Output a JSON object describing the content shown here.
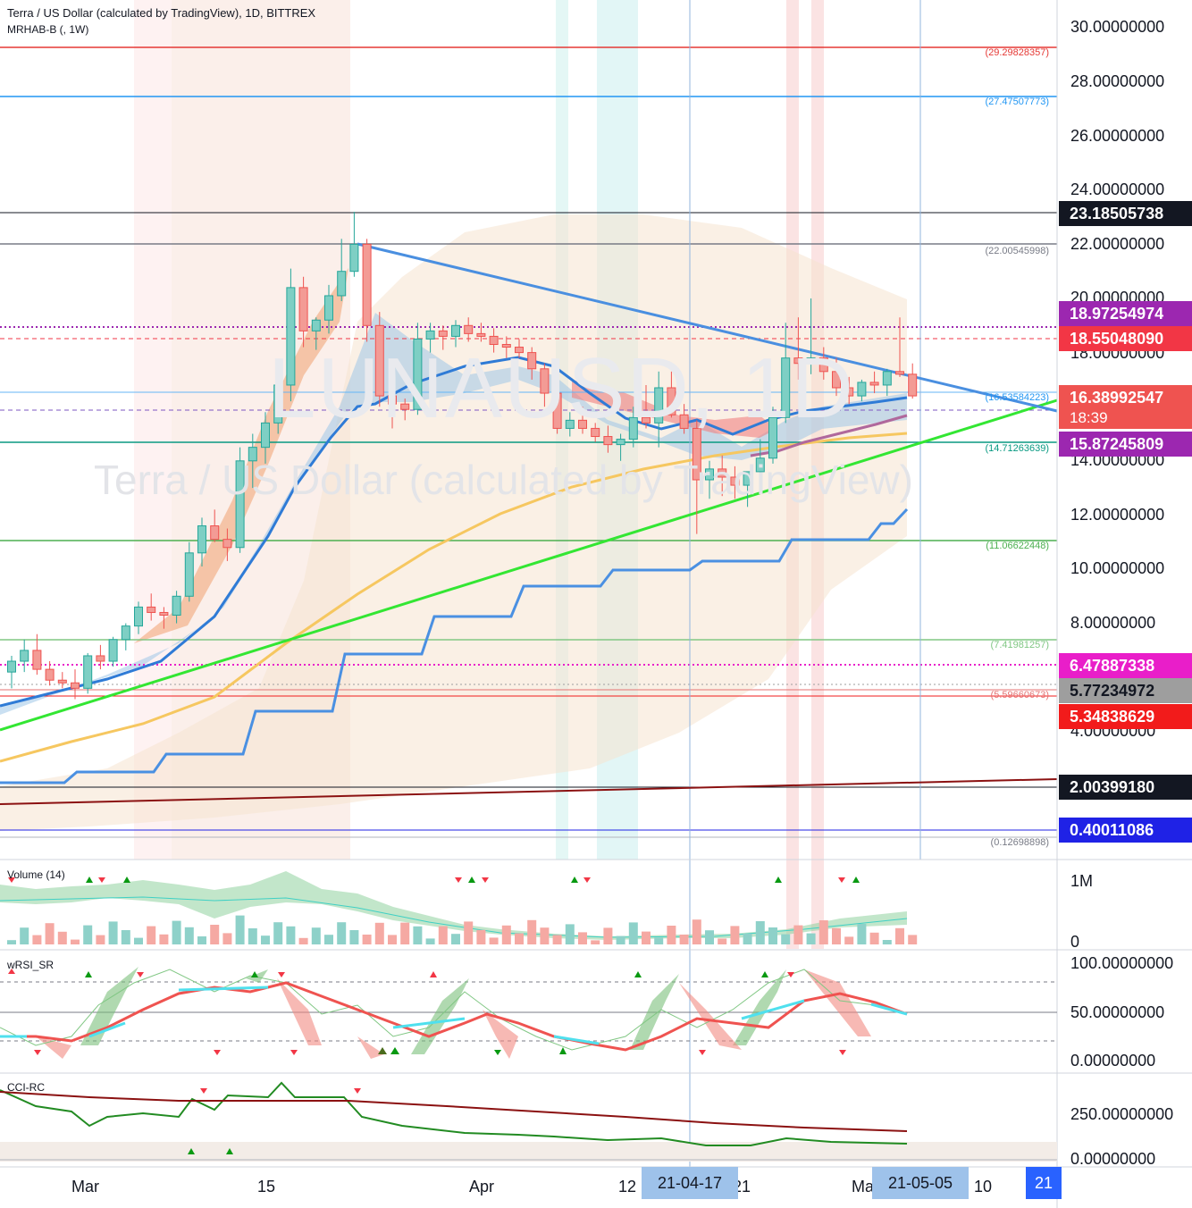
{
  "header": {
    "title": "Terra / US Dollar (calculated by TradingView), 1D, BITTREX",
    "indicator": "MRHAB-B (, 1W)"
  },
  "watermark": {
    "symbol": "LUNAUSD, 1D",
    "name": "Terra / US Dollar (calculated by TradingView)"
  },
  "price_axis": {
    "ticks": [
      "30.00000000",
      "28.00000000",
      "26.00000000",
      "24.00000000",
      "22.00000000",
      "20.00000000",
      "18.00000000",
      "14.00000000",
      "12.00000000",
      "10.00000000",
      "8.00000000",
      "4.00000000"
    ]
  },
  "price_labels": [
    {
      "text": "23.18505738",
      "bg": "#131722"
    },
    {
      "text": "18.97254974",
      "bg": "#9c27b0"
    },
    {
      "text": "18.55048090",
      "bg": "#f23645"
    },
    {
      "text": "16.38992547",
      "bg": "#ef5350"
    },
    {
      "text": "18:39",
      "bg": "#ef5350"
    },
    {
      "text": "15.87245809",
      "bg": "#9c27b0"
    },
    {
      "text": "6.47887338",
      "bg": "#e91ec9"
    },
    {
      "text": "5.77234972",
      "bg": "#9e9e9e"
    },
    {
      "text": "5.34838629",
      "bg": "#f21b1b"
    },
    {
      "text": "2.00399180",
      "bg": "#131722"
    },
    {
      "text": "0.40011086",
      "bg": "#1f22e6"
    }
  ],
  "level_labels": [
    "(29.29828357)",
    "(27.47507773)",
    "(22.00545998)",
    "(16.53584223)",
    "(14.71263639)",
    "(11.06622448)",
    "(7.41981257)",
    "(5.59660673)",
    "(0.12698898)"
  ],
  "panes": {
    "volume": {
      "label": "Volume (14)",
      "ticks": [
        "1M",
        "0"
      ]
    },
    "wrsi": {
      "label": "wRSI_SR",
      "ticks": [
        "100.00000000",
        "50.00000000",
        "0.00000000"
      ]
    },
    "cci": {
      "label": "CCI-RC",
      "ticks": [
        "250.00000000",
        "0.00000000"
      ]
    }
  },
  "time_axis": {
    "labels": [
      "Mar",
      "15",
      "Apr",
      "12",
      "21",
      "Ma",
      "10",
      "21"
    ],
    "badges": [
      "21-04-17",
      "21-05-05"
    ]
  },
  "chart_data": {
    "type": "candlestick",
    "title": "Terra / US Dollar (calculated by TradingView), 1D, BITTREX",
    "ylim": [
      0,
      31
    ],
    "ohlc": [
      [
        6.2,
        6.8,
        5.6,
        6.6
      ],
      [
        6.6,
        7.4,
        6.2,
        7.0
      ],
      [
        7.0,
        7.6,
        6.1,
        6.3
      ],
      [
        6.3,
        6.6,
        5.7,
        5.9
      ],
      [
        5.9,
        6.2,
        5.6,
        5.8
      ],
      [
        5.8,
        6.3,
        5.2,
        5.6
      ],
      [
        5.6,
        6.9,
        5.4,
        6.8
      ],
      [
        6.8,
        7.2,
        6.3,
        6.6
      ],
      [
        6.6,
        7.5,
        6.4,
        7.4
      ],
      [
        7.4,
        8.0,
        7.0,
        7.9
      ],
      [
        7.9,
        8.8,
        7.6,
        8.6
      ],
      [
        8.6,
        9.1,
        8.1,
        8.4
      ],
      [
        8.4,
        8.6,
        7.8,
        8.3
      ],
      [
        8.3,
        9.2,
        8.0,
        9.0
      ],
      [
        9.0,
        11.0,
        8.8,
        10.6
      ],
      [
        10.6,
        11.9,
        10.1,
        11.6
      ],
      [
        11.6,
        12.2,
        11.0,
        11.1
      ],
      [
        11.1,
        11.5,
        10.3,
        10.8
      ],
      [
        10.8,
        14.5,
        10.6,
        14.0
      ],
      [
        14.0,
        15.0,
        13.0,
        14.5
      ],
      [
        14.5,
        15.8,
        13.9,
        15.4
      ],
      [
        15.4,
        17.0,
        15.0,
        16.8
      ],
      [
        16.8,
        21.1,
        16.2,
        20.4
      ],
      [
        20.4,
        20.8,
        18.2,
        18.8
      ],
      [
        18.8,
        19.3,
        18.1,
        19.2
      ],
      [
        19.2,
        20.5,
        18.7,
        20.1
      ],
      [
        20.1,
        22.2,
        19.9,
        21.0
      ],
      [
        21.0,
        23.2,
        20.8,
        22.0
      ],
      [
        22.0,
        22.2,
        18.4,
        19.0
      ],
      [
        19.0,
        19.5,
        16.0,
        16.4
      ],
      [
        16.4,
        16.8,
        15.2,
        16.1
      ],
      [
        16.1,
        16.3,
        15.5,
        15.9
      ],
      [
        15.9,
        19.1,
        15.7,
        18.5
      ],
      [
        18.5,
        19.1,
        18.0,
        18.8
      ],
      [
        18.8,
        19.0,
        18.1,
        18.6
      ],
      [
        18.6,
        19.2,
        18.2,
        19.0
      ],
      [
        19.0,
        19.3,
        18.4,
        18.7
      ],
      [
        18.7,
        19.1,
        18.4,
        18.6
      ],
      [
        18.6,
        18.9,
        18.0,
        18.3
      ],
      [
        18.3,
        18.6,
        17.8,
        18.2
      ],
      [
        18.2,
        18.5,
        17.8,
        18.0
      ],
      [
        18.0,
        18.2,
        17.0,
        17.4
      ],
      [
        17.4,
        17.6,
        16.0,
        16.5
      ],
      [
        16.5,
        16.9,
        15.0,
        15.2
      ],
      [
        15.2,
        15.8,
        14.9,
        15.5
      ],
      [
        15.5,
        16.0,
        15.0,
        15.2
      ],
      [
        15.2,
        15.4,
        14.7,
        14.9
      ],
      [
        14.9,
        15.3,
        14.3,
        14.6
      ],
      [
        14.6,
        15.0,
        14.0,
        14.8
      ],
      [
        14.8,
        16.0,
        14.5,
        15.6
      ],
      [
        15.6,
        16.8,
        15.2,
        15.4
      ],
      [
        15.4,
        17.3,
        14.5,
        16.7
      ],
      [
        16.7,
        17.3,
        15.6,
        15.7
      ],
      [
        15.7,
        16.1,
        15.0,
        15.2
      ],
      [
        15.2,
        15.5,
        11.3,
        13.3
      ],
      [
        13.3,
        14.0,
        12.6,
        13.7
      ],
      [
        13.7,
        14.2,
        12.7,
        13.4
      ],
      [
        13.4,
        13.8,
        12.6,
        13.1
      ],
      [
        13.1,
        13.6,
        12.3,
        13.6
      ],
      [
        13.6,
        14.8,
        13.2,
        14.1
      ],
      [
        14.1,
        16.0,
        13.9,
        15.6
      ],
      [
        15.6,
        19.1,
        15.4,
        17.8
      ],
      [
        17.8,
        19.3,
        17.0,
        17.6
      ],
      [
        17.6,
        20.0,
        17.2,
        17.8
      ],
      [
        17.8,
        18.2,
        17.0,
        17.3
      ],
      [
        17.3,
        17.8,
        16.4,
        16.7
      ],
      [
        16.7,
        17.1,
        16.1,
        16.4
      ],
      [
        16.4,
        17.0,
        16.2,
        16.9
      ],
      [
        16.9,
        17.3,
        16.5,
        16.8
      ],
      [
        16.8,
        17.4,
        16.4,
        17.3
      ],
      [
        17.3,
        19.3,
        17.1,
        17.2
      ],
      [
        17.2,
        17.6,
        16.3,
        16.4
      ]
    ],
    "horizontal_levels": [
      29.29828357,
      27.47507773,
      23.18505738,
      22.00545998,
      18.97254974,
      18.5504809,
      16.53584223,
      15.87245809,
      14.71263639,
      11.06622448,
      7.41981257,
      6.47887338,
      5.77234972,
      5.59660673,
      5.34838629,
      2.0039918,
      0.40011086,
      0.12698898
    ],
    "grid": false,
    "legend": "none"
  }
}
